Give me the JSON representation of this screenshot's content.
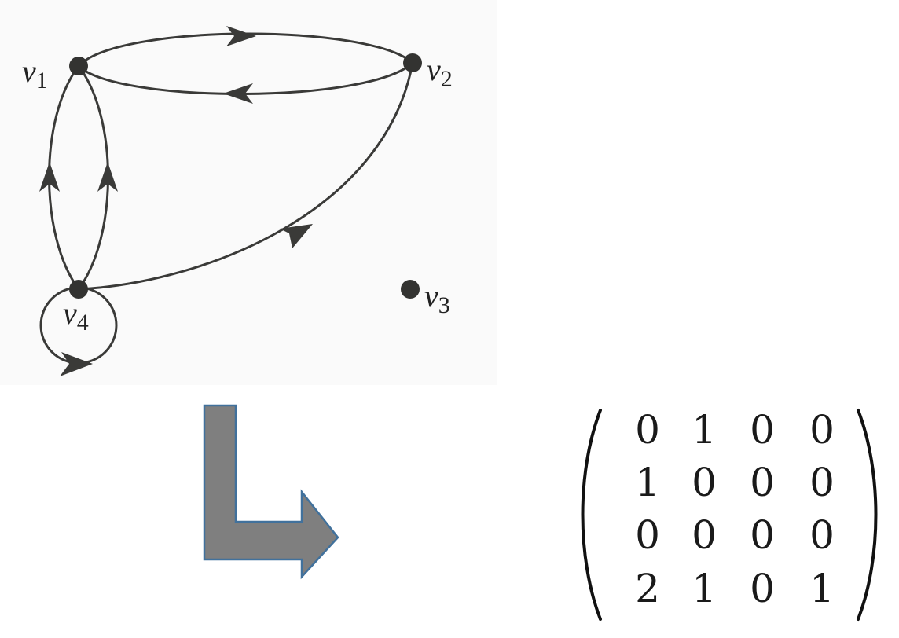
{
  "graph": {
    "vertices": [
      {
        "id": "v1",
        "base": "v",
        "sub": "1"
      },
      {
        "id": "v2",
        "base": "v",
        "sub": "2"
      },
      {
        "id": "v3",
        "base": "v",
        "sub": "3"
      },
      {
        "id": "v4",
        "base": "v",
        "sub": "4"
      }
    ],
    "edges": [
      {
        "from": "v1",
        "to": "v2"
      },
      {
        "from": "v2",
        "to": "v1"
      },
      {
        "from": "v4",
        "to": "v1"
      },
      {
        "from": "v4",
        "to": "v1"
      },
      {
        "from": "v4",
        "to": "v2"
      },
      {
        "from": "v4",
        "to": "v4"
      }
    ],
    "colors": {
      "edge": "#3a3a38",
      "vertex": "#333331",
      "panel": "#fafafa"
    }
  },
  "transform_arrow": {
    "icon": "bent-right-arrow-icon",
    "fill": "#7f7f7f",
    "stroke": "#41719c"
  },
  "adjacency_matrix": {
    "rows": [
      [
        "0",
        "1",
        "0",
        "0"
      ],
      [
        "1",
        "0",
        "0",
        "0"
      ],
      [
        "0",
        "0",
        "0",
        "0"
      ],
      [
        "2",
        "1",
        "0",
        "1"
      ]
    ]
  }
}
